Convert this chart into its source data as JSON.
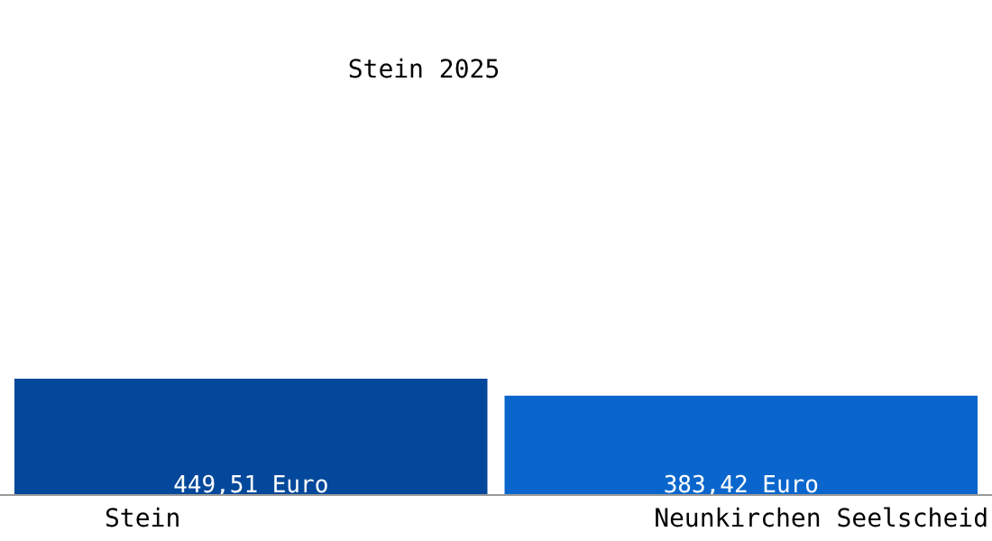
{
  "chart_data": {
    "type": "bar",
    "title": "Stein 2025",
    "categories": [
      "Stein",
      "Neunkirchen Seelscheid"
    ],
    "values": [
      449.51,
      383.42
    ],
    "colors": [
      "#03489a",
      "#0a66cc"
    ],
    "value_labels": [
      "449,51 Euro",
      "383,42 Euro"
    ]
  }
}
